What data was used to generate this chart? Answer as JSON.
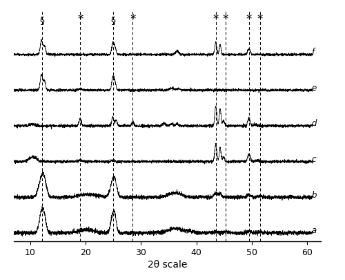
{
  "x_min": 7,
  "x_max": 61,
  "x_label": "2θ scale",
  "x_ticks": [
    10,
    20,
    30,
    40,
    50,
    60
  ],
  "dashed_lines": [
    12.1,
    19.0,
    24.9,
    28.5,
    43.5,
    45.3,
    49.5,
    51.5
  ],
  "background_color": "#ffffff",
  "line_color": "#000000",
  "trace_labels": [
    "a",
    "b",
    "c",
    "d",
    "e",
    "f"
  ],
  "trace_offsets": [
    0.0,
    0.42,
    0.84,
    1.26,
    1.68,
    2.1
  ],
  "vertical_scale": 0.28,
  "noise_scale": 0.012
}
